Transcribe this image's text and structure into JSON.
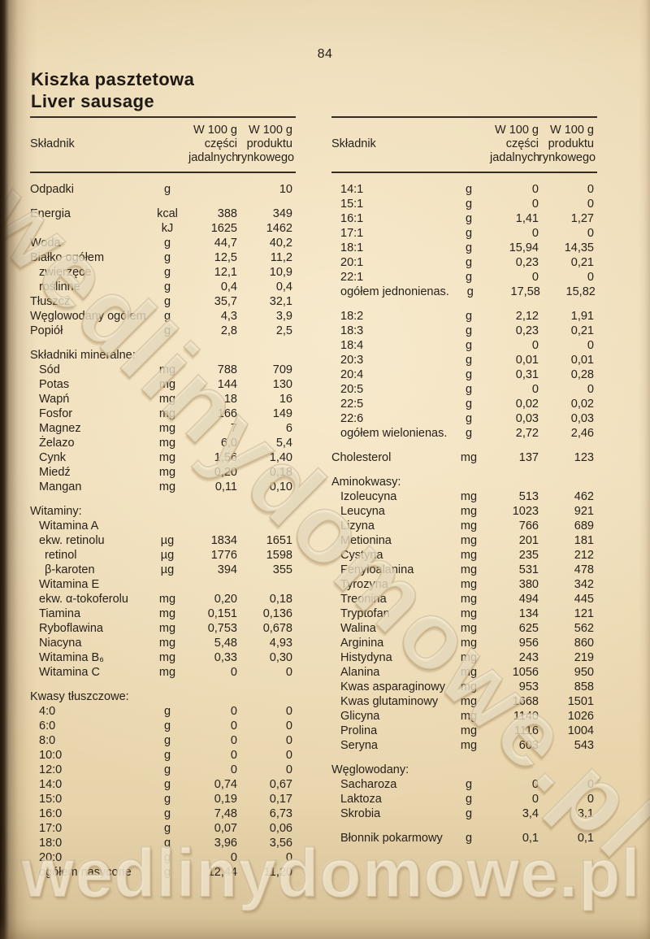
{
  "page": {
    "number": "84",
    "title_pl": "Kiszka pasztetowa",
    "title_en": "Liver sausage",
    "watermark": "wedlinydomowe.pl",
    "paper_color": "#ecd9b4",
    "text_color": "#28221c"
  },
  "table_header": {
    "col_label": "Składnik",
    "col1_line1": "W 100 g",
    "col1_line2": "części",
    "col1_line3": "jadalnych",
    "col2_line1": "W 100 g",
    "col2_line2": "produktu",
    "col2_line3": "rynkowego"
  },
  "left_table": {
    "rows": [
      {
        "l": "Odpadki",
        "u": "g",
        "v1": "",
        "v2": "10",
        "i": 0
      },
      {
        "b": true
      },
      {
        "l": "Energia",
        "u": "kcal",
        "v1": "388",
        "v2": "349",
        "i": 0
      },
      {
        "l": "",
        "u": "kJ",
        "v1": "1625",
        "v2": "1462",
        "i": 0
      },
      {
        "l": "Woda",
        "u": "g",
        "v1": "44,7",
        "v2": "40,2",
        "i": 0
      },
      {
        "l": "Białko ogółem",
        "u": "g",
        "v1": "12,5",
        "v2": "11,2",
        "i": 0
      },
      {
        "l": "zwierzęce",
        "u": "g",
        "v1": "12,1",
        "v2": "10,9",
        "i": 1
      },
      {
        "l": "roślinne",
        "u": "g",
        "v1": "0,4",
        "v2": "0,4",
        "i": 1
      },
      {
        "l": "Tłuszcz",
        "u": "g",
        "v1": "35,7",
        "v2": "32,1",
        "i": 0
      },
      {
        "l": "Węglowodany ogółem",
        "u": "g",
        "v1": "4,3",
        "v2": "3,9",
        "i": 0
      },
      {
        "l": "Popiół",
        "u": "g",
        "v1": "2,8",
        "v2": "2,5",
        "i": 0
      },
      {
        "b": true
      },
      {
        "l": "Składniki mineralne:",
        "s": true
      },
      {
        "l": "Sód",
        "u": "mg",
        "v1": "788",
        "v2": "709",
        "i": 1
      },
      {
        "l": "Potas",
        "u": "mg",
        "v1": "144",
        "v2": "130",
        "i": 1
      },
      {
        "l": "Wapń",
        "u": "mg",
        "v1": "18",
        "v2": "16",
        "i": 1
      },
      {
        "l": "Fosfor",
        "u": "mg",
        "v1": "166",
        "v2": "149",
        "i": 1
      },
      {
        "l": "Magnez",
        "u": "mg",
        "v1": "7",
        "v2": "6",
        "i": 1
      },
      {
        "l": "Żelazo",
        "u": "mg",
        "v1": "6,0",
        "v2": "5,4",
        "i": 1
      },
      {
        "l": "Cynk",
        "u": "mg",
        "v1": "1,56",
        "v2": "1,40",
        "i": 1
      },
      {
        "l": "Miedź",
        "u": "mg",
        "v1": "0,20",
        "v2": "0,18",
        "i": 1
      },
      {
        "l": "Mangan",
        "u": "mg",
        "v1": "0,11",
        "v2": "0,10",
        "i": 1
      },
      {
        "b": true
      },
      {
        "l": "Witaminy:",
        "s": true
      },
      {
        "l": "Witamina A",
        "u": "",
        "v1": "",
        "v2": "",
        "i": 1
      },
      {
        "l": "ekw. retinolu",
        "u": "µg",
        "v1": "1834",
        "v2": "1651",
        "i": 1
      },
      {
        "l": "retinol",
        "u": "µg",
        "v1": "1776",
        "v2": "1598",
        "i": 2
      },
      {
        "l": "β-karoten",
        "u": "µg",
        "v1": "394",
        "v2": "355",
        "i": 2
      },
      {
        "l": "Witamina E",
        "u": "",
        "v1": "",
        "v2": "",
        "i": 1
      },
      {
        "l": "ekw. α-tokoferolu",
        "u": "mg",
        "v1": "0,20",
        "v2": "0,18",
        "i": 1
      },
      {
        "l": "Tiamina",
        "u": "mg",
        "v1": "0,151",
        "v2": "0,136",
        "i": 1
      },
      {
        "l": "Ryboflawina",
        "u": "mg",
        "v1": "0,753",
        "v2": "0,678",
        "i": 1
      },
      {
        "l": "Niacyna",
        "u": "mg",
        "v1": "5,48",
        "v2": "4,93",
        "i": 1
      },
      {
        "l": "Witamina B₆",
        "u": "mg",
        "v1": "0,33",
        "v2": "0,30",
        "i": 1
      },
      {
        "l": "Witamina C",
        "u": "mg",
        "v1": "0",
        "v2": "0",
        "i": 1
      },
      {
        "b": true
      },
      {
        "l": "Kwasy tłuszczowe:",
        "s": true
      },
      {
        "l": "4:0",
        "u": "g",
        "v1": "0",
        "v2": "0",
        "i": 1
      },
      {
        "l": "6:0",
        "u": "g",
        "v1": "0",
        "v2": "0",
        "i": 1
      },
      {
        "l": "8:0",
        "u": "g",
        "v1": "0",
        "v2": "0",
        "i": 1
      },
      {
        "l": "10:0",
        "u": "g",
        "v1": "0",
        "v2": "0",
        "i": 1
      },
      {
        "l": "12:0",
        "u": "g",
        "v1": "0",
        "v2": "0",
        "i": 1
      },
      {
        "l": "14:0",
        "u": "g",
        "v1": "0,74",
        "v2": "0,67",
        "i": 1
      },
      {
        "l": "15:0",
        "u": "g",
        "v1": "0,19",
        "v2": "0,17",
        "i": 1
      },
      {
        "l": "16:0",
        "u": "g",
        "v1": "7,48",
        "v2": "6,73",
        "i": 1
      },
      {
        "l": "17:0",
        "u": "g",
        "v1": "0,07",
        "v2": "0,06",
        "i": 1
      },
      {
        "l": "18:0",
        "u": "g",
        "v1": "3,96",
        "v2": "3,56",
        "i": 1
      },
      {
        "l": "20:0",
        "u": "g",
        "v1": "0",
        "v2": "0",
        "i": 1
      },
      {
        "l": "ogółem nasycone",
        "u": "g",
        "v1": "12,44",
        "v2": "11,20",
        "i": 1
      }
    ]
  },
  "right_table": {
    "rows": [
      {
        "l": "14:1",
        "u": "g",
        "v1": "0",
        "v2": "0",
        "i": 1
      },
      {
        "l": "15:1",
        "u": "g",
        "v1": "0",
        "v2": "0",
        "i": 1
      },
      {
        "l": "16:1",
        "u": "g",
        "v1": "1,41",
        "v2": "1,27",
        "i": 1
      },
      {
        "l": "17:1",
        "u": "g",
        "v1": "0",
        "v2": "0",
        "i": 1
      },
      {
        "l": "18:1",
        "u": "g",
        "v1": "15,94",
        "v2": "14,35",
        "i": 1
      },
      {
        "l": "20:1",
        "u": "g",
        "v1": "0,23",
        "v2": "0,21",
        "i": 1
      },
      {
        "l": "22:1",
        "u": "g",
        "v1": "0",
        "v2": "0",
        "i": 1
      },
      {
        "l": "ogółem jednonienas.",
        "u": "g",
        "v1": "17,58",
        "v2": "15,82",
        "i": 1
      },
      {
        "b": true
      },
      {
        "l": "18:2",
        "u": "g",
        "v1": "2,12",
        "v2": "1,91",
        "i": 1
      },
      {
        "l": "18:3",
        "u": "g",
        "v1": "0,23",
        "v2": "0,21",
        "i": 1
      },
      {
        "l": "18:4",
        "u": "g",
        "v1": "0",
        "v2": "0",
        "i": 1
      },
      {
        "l": "20:3",
        "u": "g",
        "v1": "0,01",
        "v2": "0,01",
        "i": 1
      },
      {
        "l": "20:4",
        "u": "g",
        "v1": "0,31",
        "v2": "0,28",
        "i": 1
      },
      {
        "l": "20:5",
        "u": "g",
        "v1": "0",
        "v2": "0",
        "i": 1
      },
      {
        "l": "22:5",
        "u": "g",
        "v1": "0,02",
        "v2": "0,02",
        "i": 1
      },
      {
        "l": "22:6",
        "u": "g",
        "v1": "0,03",
        "v2": "0,03",
        "i": 1
      },
      {
        "l": "ogółem wielonienas.",
        "u": "g",
        "v1": "2,72",
        "v2": "2,46",
        "i": 1
      },
      {
        "b": true
      },
      {
        "l": "Cholesterol",
        "u": "mg",
        "v1": "137",
        "v2": "123",
        "i": 0
      },
      {
        "b": true
      },
      {
        "l": "Aminokwasy:",
        "s": true
      },
      {
        "l": "Izoleucyna",
        "u": "mg",
        "v1": "513",
        "v2": "462",
        "i": 1
      },
      {
        "l": "Leucyna",
        "u": "mg",
        "v1": "1023",
        "v2": "921",
        "i": 1
      },
      {
        "l": "Lizyna",
        "u": "mg",
        "v1": "766",
        "v2": "689",
        "i": 1
      },
      {
        "l": "Metionina",
        "u": "mg",
        "v1": "201",
        "v2": "181",
        "i": 1
      },
      {
        "l": "Cystyna",
        "u": "mg",
        "v1": "235",
        "v2": "212",
        "i": 1
      },
      {
        "l": "Fenyloalanina",
        "u": "mg",
        "v1": "531",
        "v2": "478",
        "i": 1
      },
      {
        "l": "Tyrozyna",
        "u": "mg",
        "v1": "380",
        "v2": "342",
        "i": 1
      },
      {
        "l": "Treonina",
        "u": "mg",
        "v1": "494",
        "v2": "445",
        "i": 1
      },
      {
        "l": "Tryptofan",
        "u": "mg",
        "v1": "134",
        "v2": "121",
        "i": 1
      },
      {
        "l": "Walina",
        "u": "mg",
        "v1": "625",
        "v2": "562",
        "i": 1
      },
      {
        "l": "Arginina",
        "u": "mg",
        "v1": "956",
        "v2": "860",
        "i": 1
      },
      {
        "l": "Histydyna",
        "u": "mg",
        "v1": "243",
        "v2": "219",
        "i": 1
      },
      {
        "l": "Alanina",
        "u": "mg",
        "v1": "1056",
        "v2": "950",
        "i": 1
      },
      {
        "l": "Kwas asparaginowy",
        "u": "mg",
        "v1": "953",
        "v2": "858",
        "i": 1
      },
      {
        "l": "Kwas glutaminowy",
        "u": "mg",
        "v1": "1668",
        "v2": "1501",
        "i": 1
      },
      {
        "l": "Glicyna",
        "u": "mg",
        "v1": "1140",
        "v2": "1026",
        "i": 1
      },
      {
        "l": "Prolina",
        "u": "mg",
        "v1": "1116",
        "v2": "1004",
        "i": 1
      },
      {
        "l": "Seryna",
        "u": "mg",
        "v1": "603",
        "v2": "543",
        "i": 1
      },
      {
        "b": true
      },
      {
        "l": "Węglowodany:",
        "s": true
      },
      {
        "l": "Sacharoza",
        "u": "g",
        "v1": "0",
        "v2": "0",
        "i": 1
      },
      {
        "l": "Laktoza",
        "u": "g",
        "v1": "0",
        "v2": "0",
        "i": 1
      },
      {
        "l": "Skrobia",
        "u": "g",
        "v1": "3,4",
        "v2": "3,1",
        "i": 1
      },
      {
        "b": true
      },
      {
        "l": "Błonnik pokarmowy",
        "u": "g",
        "v1": "0,1",
        "v2": "0,1",
        "i": 1
      }
    ]
  }
}
